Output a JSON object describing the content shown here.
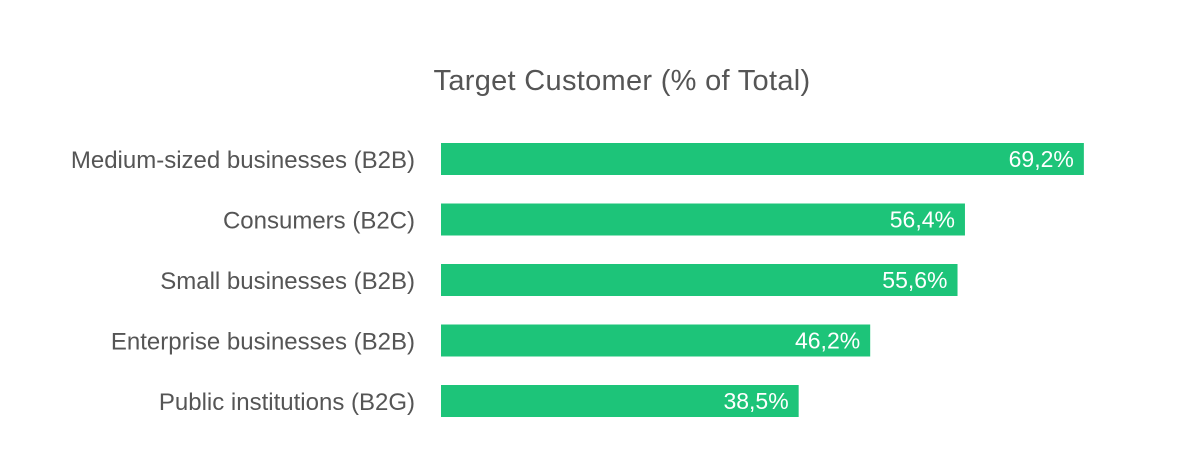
{
  "chart_data": {
    "type": "bar",
    "orientation": "horizontal",
    "title": "Target Customer (% of Total)",
    "categories": [
      "Medium-sized businesses (B2B)",
      "Consumers (B2C)",
      "Small businesses (B2B)",
      "Enterprise businesses (B2B)",
      "Public institutions (B2G)"
    ],
    "values": [
      69.2,
      56.4,
      55.6,
      46.2,
      38.5
    ],
    "value_labels": [
      "69,2%",
      "56,4%",
      "55,6%",
      "46,2%",
      "38,5%"
    ],
    "xlim": [
      0,
      100
    ],
    "grid": false,
    "legend": "none",
    "bar_color": "#1dc479",
    "label_color": "#555555",
    "value_label_color": "#ffffff"
  }
}
